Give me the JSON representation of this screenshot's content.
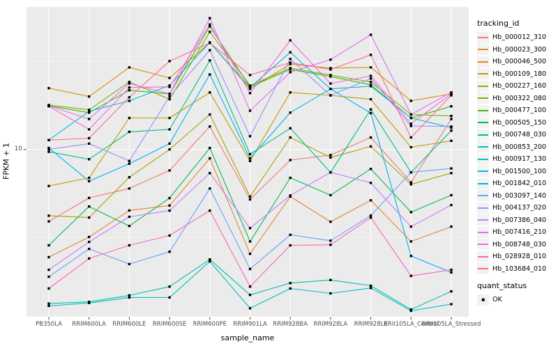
{
  "axes": {
    "x": {
      "title": "sample_name"
    },
    "y": {
      "title": "FPKM + 1",
      "tick_labels": [
        "10"
      ]
    }
  },
  "legend": {
    "tracking": {
      "title": "tracking_id"
    },
    "quant": {
      "title": "quant_status",
      "items": [
        "OK"
      ]
    }
  },
  "colors": {
    "panel_bg": "#EBEBEB",
    "grid": "#FFFFFF",
    "axis_text": "#4D4D4D",
    "legend_key_bg": "#F2F2F2",
    "point": "#000000"
  },
  "chart_data": {
    "type": "line",
    "xlabel": "sample_name",
    "ylabel": "FPKM + 1",
    "y_scale": "log10",
    "ylim": [
      1.12,
      64.6
    ],
    "y_major_ticks": [
      10
    ],
    "y_minor_gridlines": [
      3.162,
      31.62
    ],
    "grid": "on",
    "legend_position": "right",
    "point_shape": "filled-square",
    "point_color": "#000000",
    "quant_status": "OK",
    "x_categories": [
      "PB350LA",
      "RRIM600LA",
      "RRIM600LE",
      "RRIM600SE",
      "RRIM600PE",
      "RRIM901LA",
      "RRIM928BA",
      "RRIM928LA",
      "RRIM928LE",
      "RRII105LA_Control",
      "RRII105LA_Stressed"
    ],
    "series": [
      {
        "name": "Hb_000012_310",
        "color": "#F8766D",
        "values": [
          3.9,
          5.3,
          6.0,
          7.6,
          13.5,
          5.2,
          8.7,
          9.3,
          11.7,
          6.5,
          14.9
        ]
      },
      {
        "name": "Hb_000023_300",
        "color": "#EA8331",
        "values": [
          2.44,
          3.18,
          4.5,
          4.8,
          8.9,
          2.55,
          5.4,
          3.88,
          5.14,
          3.0,
          3.64
        ]
      },
      {
        "name": "Hb_000046_500",
        "color": "#D89000",
        "values": [
          22.3,
          20.0,
          29.3,
          25.5,
          40.6,
          22.1,
          30.6,
          29.0,
          29.3,
          18.9,
          20.7
        ]
      },
      {
        "name": "Hb_000109_180",
        "color": "#C09B00",
        "values": [
          6.2,
          6.9,
          15.1,
          15.1,
          21.1,
          8.6,
          21.1,
          20.3,
          19.3,
          10.3,
          11.2
        ]
      },
      {
        "name": "Hb_000227_160",
        "color": "#A3A500",
        "values": [
          4.2,
          4.1,
          6.95,
          10.0,
          15.8,
          5.4,
          11.7,
          9.0,
          10.4,
          6.34,
          7.34
        ]
      },
      {
        "name": "Hb_000322_080",
        "color": "#7CAE00",
        "values": [
          17.9,
          16.8,
          24.2,
          19.3,
          46.6,
          23.1,
          29.0,
          26.5,
          24.2,
          15.8,
          15.5
        ]
      },
      {
        "name": "Hb_000477_100",
        "color": "#39B600",
        "values": [
          17.7,
          16.2,
          21.7,
          20.7,
          50.1,
          22.7,
          28.5,
          26.0,
          23.3,
          15.1,
          17.6
        ]
      },
      {
        "name": "Hb_000505_150",
        "color": "#00BB4E",
        "values": [
          2.85,
          4.74,
          3.67,
          5.29,
          10.2,
          3.0,
          6.9,
          5.5,
          7.75,
          4.4,
          5.5
        ]
      },
      {
        "name": "Hb_000748_030",
        "color": "#00C087",
        "values": [
          9.7,
          8.8,
          12.6,
          13.0,
          32.1,
          9.4,
          13.2,
          7.4,
          16.9,
          7.4,
          12.8
        ]
      },
      {
        "name": "Hb_000853_200",
        "color": "#00C0AF",
        "values": [
          1.33,
          1.36,
          1.48,
          1.66,
          2.37,
          1.49,
          1.74,
          1.81,
          1.68,
          1.23,
          1.56
        ]
      },
      {
        "name": "Hb_000917_130",
        "color": "#00BFC4",
        "values": [
          1.29,
          1.34,
          1.44,
          1.44,
          2.31,
          1.25,
          1.62,
          1.52,
          1.63,
          1.21,
          1.32
        ]
      },
      {
        "name": "Hb_001500_100",
        "color": "#00B8E5",
        "values": [
          11.3,
          16.5,
          18.9,
          23.1,
          40.6,
          22.5,
          35.7,
          22.1,
          22.9,
          15.1,
          13.3
        ]
      },
      {
        "name": "Hb_001842_010",
        "color": "#00B0F6",
        "values": [
          10.2,
          6.6,
          8.3,
          10.8,
          26.7,
          8.9,
          16.2,
          22.1,
          16.1,
          2.48,
          2.0
        ]
      },
      {
        "name": "Hb_003097_140",
        "color": "#6A9FFF",
        "values": [
          1.89,
          2.72,
          2.23,
          2.62,
          6.0,
          2.09,
          3.27,
          3.03,
          4.21,
          7.41,
          7.8
        ]
      },
      {
        "name": "Hb_004137_020",
        "color": "#9590FF",
        "values": [
          10.0,
          10.8,
          8.6,
          20.0,
          36.7,
          11.9,
          32.7,
          20.3,
          25.3,
          13.6,
          13.5
        ]
      },
      {
        "name": "Hb_007386_040",
        "color": "#C77CFF",
        "values": [
          2.07,
          2.98,
          4.14,
          4.49,
          7.34,
          3.57,
          5.48,
          7.41,
          6.46,
          3.64,
          4.83
        ]
      },
      {
        "name": "Hb_007416_210",
        "color": "#E76BF3",
        "values": [
          17.7,
          14.9,
          23.7,
          20.7,
          55.8,
          16.6,
          27.5,
          32.4,
          44.9,
          15.8,
          21.1
        ]
      },
      {
        "name": "Hb_008748_030",
        "color": "#F763DF",
        "values": [
          17.6,
          13.0,
          22.5,
          22.7,
          51.4,
          20.9,
          41.7,
          23.7,
          26.2,
          14.0,
          20.7
        ]
      },
      {
        "name": "Hb_028928_010",
        "color": "#FF62BC",
        "values": [
          1.62,
          2.4,
          2.85,
          3.24,
          4.49,
          1.66,
          2.85,
          2.87,
          4.1,
          1.91,
          2.07
        ]
      },
      {
        "name": "Hb_103684_010",
        "color": "#FF6B94",
        "values": [
          11.3,
          11.6,
          19.8,
          31.8,
          40.3,
          26.5,
          31.2,
          28.5,
          34.5,
          11.7,
          20.3
        ]
      }
    ]
  }
}
